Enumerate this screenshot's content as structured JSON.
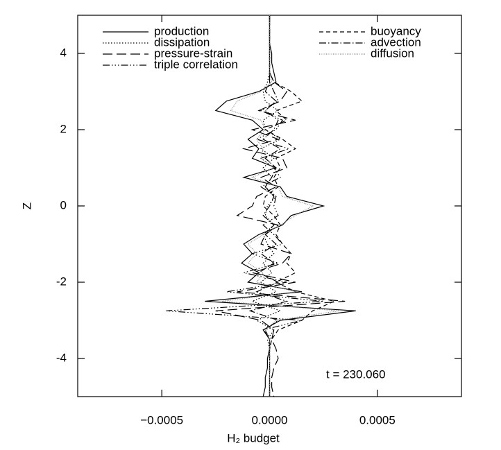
{
  "chart_data": {
    "type": "line",
    "orientation": "vertical-profile",
    "xlabel": "H₂ budget",
    "ylabel": "Z",
    "annotation": "t = 230.060",
    "legend": "top",
    "xlim": [
      -0.00089,
      0.00089
    ],
    "ylim": [
      -5,
      5
    ],
    "xticks": [
      {
        "value": -0.0005,
        "label": "−0.0005"
      },
      {
        "value": 0,
        "label": "0.0000"
      },
      0.0005
    ],
    "yticks": [
      -4,
      -2,
      0,
      2,
      4
    ],
    "z": [
      5,
      4.75,
      4.5,
      4.25,
      4,
      3.75,
      3.5,
      3.25,
      3,
      2.75,
      2.5,
      2.25,
      2,
      1.75,
      1.5,
      1.25,
      1,
      0.75,
      0.5,
      0.25,
      0,
      -0.25,
      -0.5,
      -0.75,
      -1,
      -1.25,
      -1.5,
      -1.75,
      -2,
      -2.25,
      -2.5,
      -2.75,
      -3,
      -3.25,
      -3.5,
      -3.75,
      -4,
      -4.25,
      -4.5,
      -4.75,
      -5
    ],
    "series": [
      {
        "name": "production",
        "color": "#000000",
        "dash": "none",
        "values": [
          0,
          0,
          0,
          0,
          1e-05,
          1e-05,
          2e-05,
          3e-05,
          -5e-05,
          -0.0002,
          -0.00025,
          -8e-05,
          -3e-05,
          -0.0001,
          -5e-05,
          -8e-05,
          3e-05,
          -0.00012,
          5e-05,
          8e-05,
          0.00025,
          0.0001,
          6e-05,
          -5e-05,
          -0.00012,
          -8e-05,
          -0.00013,
          -5e-05,
          -0.0001,
          0.00015,
          -0.0003,
          0.0004,
          5e-05,
          -3e-05,
          0,
          0,
          -1e-05,
          -1e-05,
          -2e-05,
          -2e-05,
          -3e-05
        ]
      },
      {
        "name": "dissipation",
        "color": "#000000",
        "dash": "1.5,2.5",
        "values": [
          0,
          0,
          0,
          0,
          0,
          0,
          0,
          -1e-05,
          -3e-05,
          -2e-05,
          4e-05,
          -3e-05,
          -2e-05,
          5e-05,
          -4e-05,
          2e-05,
          -3e-05,
          1e-05,
          -2e-05,
          3e-05,
          -1e-05,
          -2e-05,
          2e-05,
          -3e-05,
          -1e-05,
          2e-05,
          -3e-05,
          1e-05,
          -4e-05,
          3e-05,
          -8e-05,
          5e-05,
          -6e-05,
          2e-05,
          -1e-05,
          0,
          0,
          0,
          0,
          0,
          0
        ]
      },
      {
        "name": "pressure-strain",
        "color": "#000000",
        "dash": "14,6",
        "values": [
          0,
          0,
          0,
          0,
          0,
          0,
          0,
          2e-05,
          8e-05,
          5e-05,
          -5e-05,
          0.00012,
          -8e-05,
          4e-05,
          -0.00012,
          6e-05,
          8e-05,
          -4e-05,
          3e-05,
          -6e-05,
          -8e-05,
          -0.00015,
          4e-05,
          -2e-05,
          -4e-05,
          0.0001,
          6e-05,
          -8e-05,
          0.00012,
          -0.00015,
          0.00035,
          -0.00025,
          -4e-05,
          2e-05,
          1e-05,
          3e-05,
          4e-05,
          2e-05,
          1e-05,
          1e-05,
          2e-05
        ]
      },
      {
        "name": "triple correlation",
        "color": "#000000",
        "dash": "10,3,1.5,3,1.5,3,1.5,3",
        "values": [
          0,
          0,
          0,
          0,
          0,
          0,
          0,
          0,
          2e-05,
          4e-05,
          -4e-05,
          6e-05,
          3e-05,
          -6e-05,
          9e-05,
          -4e-05,
          2e-05,
          5e-05,
          -4e-05,
          3e-05,
          2e-05,
          4e-05,
          -3e-05,
          2e-05,
          6e-05,
          -8e-05,
          4e-05,
          -0.00012,
          8e-05,
          -0.0002,
          0.00025,
          -0.00048,
          0.00015,
          -3e-05,
          1e-05,
          0,
          0,
          0,
          0,
          0,
          0
        ]
      },
      {
        "name": "buoyancy",
        "color": "#000000",
        "dash": "6,4",
        "values": [
          0,
          0,
          0,
          0,
          0,
          0,
          0,
          2e-05,
          0.0001,
          0.00015,
          3e-05,
          8e-05,
          -2e-05,
          6e-05,
          0.00012,
          3e-05,
          5e-05,
          2e-05,
          4e-05,
          -2e-05,
          -3e-05,
          2e-05,
          5e-05,
          3e-05,
          6e-05,
          0.0001,
          8e-05,
          0.00012,
          3e-05,
          0.00012,
          0.0003,
          0.0002,
          0.00015,
          4e-05,
          1e-05,
          0,
          0,
          0,
          0,
          0,
          0
        ]
      },
      {
        "name": "advection",
        "color": "#000000",
        "dash": "10,3,1.5,3",
        "values": [
          0,
          0,
          0,
          0,
          0,
          0,
          0,
          0,
          -2e-05,
          3e-05,
          -2e-05,
          4e-05,
          2e-05,
          -3e-05,
          5e-05,
          -2e-05,
          3e-05,
          1e-05,
          -2e-05,
          2e-05,
          0,
          -3e-05,
          2e-05,
          -2e-05,
          3e-05,
          -4e-05,
          2e-05,
          -5e-05,
          4e-05,
          -6e-05,
          8e-05,
          -9e-05,
          4e-05,
          -2e-05,
          0,
          0,
          0,
          0,
          0,
          0,
          0
        ]
      },
      {
        "name": "diffusion",
        "color": "#888888",
        "dash": "1,1.5",
        "values": [
          0,
          0,
          0,
          0,
          0,
          0,
          0,
          1e-05,
          -4e-05,
          -0.00015,
          -0.00018,
          -4e-05,
          -2e-05,
          -6e-05,
          -3e-05,
          -4e-05,
          2e-05,
          -8e-05,
          4e-05,
          6e-05,
          0.0002,
          0.00012,
          5e-05,
          -3e-05,
          -0.0001,
          -6e-05,
          -0.0001,
          -3e-05,
          -6e-05,
          0.00012,
          -0.00022,
          0.00032,
          3e-05,
          -2e-05,
          0,
          0,
          0,
          0,
          0,
          0,
          0
        ]
      }
    ]
  }
}
